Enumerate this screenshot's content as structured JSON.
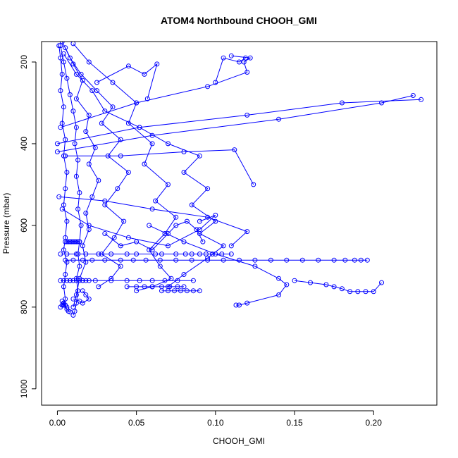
{
  "chart_data": {
    "type": "scatter",
    "title": "ATOM4 Northbound CHOOH_GMI",
    "xlabel": "CHOOH_GMI",
    "ylabel": "Pressure (mbar)",
    "xlim": [
      -0.01,
      0.24
    ],
    "ylim": [
      1040,
      150
    ],
    "y_reversed": true,
    "grid": false,
    "legend": "none",
    "x_ticks": [
      0.0,
      0.05,
      0.1,
      0.15,
      0.2
    ],
    "x_tick_labels": [
      "0.00",
      "0.05",
      "0.10",
      "0.15",
      "0.20"
    ],
    "y_ticks": [
      200,
      400,
      600,
      800,
      1000
    ],
    "y_tick_labels": [
      "200",
      "400",
      "600",
      "800",
      "1000"
    ],
    "marker": "open-circle",
    "color": "#0000ff",
    "series": [
      {
        "x": [
          0.001,
          0.002,
          0.003,
          0.002,
          0.004,
          0.003,
          0.005,
          0.004,
          0.006,
          0.005,
          0.004,
          0.006,
          0.005,
          0.004,
          0.006,
          0.005,
          0.004,
          0.005,
          0.004,
          0.006
        ],
        "y": [
          160,
          190,
          230,
          270,
          310,
          350,
          390,
          430,
          470,
          510,
          550,
          590,
          630,
          660,
          690,
          720,
          750,
          780,
          795,
          800
        ]
      },
      {
        "x": [
          0.002,
          0.004,
          0.006,
          0.008,
          0.01,
          0.012,
          0.011,
          0.013,
          0.012,
          0.014,
          0.013,
          0.015,
          0.014,
          0.013,
          0.014,
          0.012,
          0.013,
          0.012,
          0.011,
          0.01
        ],
        "y": [
          160,
          200,
          240,
          280,
          320,
          360,
          400,
          440,
          480,
          520,
          560,
          600,
          640,
          670,
          700,
          730,
          760,
          790,
          810,
          820
        ]
      },
      {
        "x": [
          0.005,
          0.01,
          0.016,
          0.012,
          0.02,
          0.018,
          0.024,
          0.02,
          0.026,
          0.022,
          0.018,
          0.02,
          0.016,
          0.018,
          0.014,
          0.012,
          0.01
        ],
        "y": [
          165,
          205,
          245,
          290,
          330,
          370,
          410,
          450,
          490,
          530,
          570,
          610,
          650,
          690,
          730,
          770,
          800
        ]
      },
      {
        "x": [
          0.003,
          0.008,
          0.015,
          0.025,
          0.035,
          0.028,
          0.04,
          0.032,
          0.045,
          0.038,
          0.03,
          0.042,
          0.036,
          0.028,
          0.04,
          0.034,
          0.026
        ],
        "y": [
          150,
          190,
          230,
          270,
          310,
          350,
          390,
          430,
          470,
          510,
          550,
          590,
          630,
          670,
          700,
          730,
          750
        ]
      },
      {
        "x": [
          0.01,
          0.02,
          0.035,
          0.05,
          0.045,
          0.06,
          0.055,
          0.07,
          0.062,
          0.075,
          0.068,
          0.058,
          0.065,
          0.072,
          0.06,
          0.05
        ],
        "y": [
          155,
          200,
          250,
          300,
          350,
          400,
          450,
          500,
          540,
          580,
          620,
          660,
          700,
          730,
          750,
          760
        ]
      },
      {
        "x": [
          0.004,
          0.012,
          0.022,
          0.03,
          0.052,
          0.07,
          0.09,
          0.08,
          0.095,
          0.085,
          0.1,
          0.09,
          0.105,
          0.095,
          0.08,
          0.07
        ],
        "y": [
          180,
          230,
          270,
          320,
          360,
          400,
          430,
          470,
          510,
          550,
          590,
          620,
          650,
          680,
          720,
          750
        ]
      },
      {
        "x": [
          0.002,
          0.006,
          0.012,
          0.018,
          0.026,
          0.034,
          0.044,
          0.05,
          0.062,
          0.066,
          0.075,
          0.081,
          0.085,
          0.09,
          0.094,
          0.098,
          0.104,
          0.11
        ],
        "y": [
          670,
          670,
          670,
          670,
          670,
          670,
          670,
          670,
          670,
          670,
          670,
          670,
          670,
          670,
          670,
          670,
          670,
          670
        ]
      },
      {
        "x": [
          0.005,
          0.01,
          0.016,
          0.022,
          0.03,
          0.04,
          0.048,
          0.056,
          0.065,
          0.075,
          0.085,
          0.095,
          0.105,
          0.115,
          0.125,
          0.135,
          0.145,
          0.155,
          0.165,
          0.175,
          0.182,
          0.188,
          0.192,
          0.196
        ],
        "y": [
          685,
          685,
          685,
          685,
          685,
          685,
          685,
          685,
          685,
          685,
          685,
          685,
          685,
          685,
          685,
          685,
          685,
          685,
          685,
          685,
          685,
          685,
          685,
          685
        ]
      },
      {
        "x": [
          0.008,
          0.016,
          0.024,
          0.034,
          0.044,
          0.052,
          0.06,
          0.068,
          0.076,
          0.086
        ],
        "y": [
          735,
          735,
          735,
          735,
          735,
          735,
          735,
          735,
          735,
          735
        ]
      },
      {
        "x": [
          0.044,
          0.05,
          0.055,
          0.06,
          0.066,
          0.071,
          0.076,
          0.08
        ],
        "y": [
          750,
          750,
          750,
          750,
          750,
          750,
          750,
          750
        ]
      },
      {
        "x": [
          0.066,
          0.07,
          0.074,
          0.078,
          0.082,
          0.086,
          0.09
        ],
        "y": [
          760,
          760,
          760,
          760,
          760,
          760,
          760
        ]
      },
      {
        "x": [
          0.15,
          0.16,
          0.17,
          0.175,
          0.18,
          0.185,
          0.19,
          0.195,
          0.2,
          0.205
        ],
        "y": [
          735,
          740,
          745,
          750,
          755,
          762,
          762,
          762,
          762,
          740
        ]
      },
      {
        "x": [
          0.0,
          0.052,
          0.12,
          0.18,
          0.23
        ],
        "y": [
          400,
          360,
          330,
          300,
          292
        ]
      },
      {
        "x": [
          0.0,
          0.06,
          0.14,
          0.205,
          0.225
        ],
        "y": [
          420,
          380,
          340,
          300,
          282
        ]
      },
      {
        "x": [
          0.002,
          0.05,
          0.095,
          0.12,
          0.118,
          0.122,
          0.11
        ],
        "y": [
          360,
          300,
          260,
          225,
          200,
          190,
          185
        ]
      },
      {
        "x": [
          0.025,
          0.045,
          0.055,
          0.063,
          0.057
        ],
        "y": [
          250,
          210,
          230,
          205,
          290
        ]
      },
      {
        "x": [
          0.1,
          0.105,
          0.115,
          0.119
        ],
        "y": [
          250,
          190,
          200,
          190
        ]
      },
      {
        "x": [
          0.005,
          0.04,
          0.08,
          0.112,
          0.124
        ],
        "y": [
          430,
          430,
          420,
          415,
          500
        ]
      },
      {
        "x": [
          0.001,
          0.03,
          0.06,
          0.095,
          0.12,
          0.11
        ],
        "y": [
          530,
          540,
          560,
          580,
          615,
          650
        ]
      },
      {
        "x": [
          0.058,
          0.08,
          0.1,
          0.125,
          0.14,
          0.145,
          0.14,
          0.12,
          0.115,
          0.113
        ],
        "y": [
          600,
          640,
          670,
          700,
          730,
          745,
          770,
          790,
          795,
          795
        ]
      },
      {
        "x": [
          0.003,
          0.02,
          0.045,
          0.07,
          0.09,
          0.1,
          0.09
        ],
        "y": [
          560,
          600,
          630,
          650,
          610,
          575,
          590
        ]
      },
      {
        "x": [
          0.03,
          0.04,
          0.05,
          0.06,
          0.07,
          0.075,
          0.082,
          0.088,
          0.092
        ],
        "y": [
          620,
          650,
          640,
          660,
          620,
          600,
          590,
          610,
          640
        ]
      },
      {
        "x": [
          0.002,
          0.003,
          0.004,
          0.003,
          0.004,
          0.005,
          0.006,
          0.007,
          0.008
        ],
        "y": [
          800,
          795,
          790,
          785,
          790,
          795,
          805,
          810,
          812
        ]
      },
      {
        "x": [
          0.005,
          0.006,
          0.007,
          0.008,
          0.009,
          0.01,
          0.011,
          0.012,
          0.013,
          0.014
        ],
        "y": [
          640,
          640,
          640,
          640,
          640,
          640,
          640,
          640,
          640,
          640
        ]
      },
      {
        "x": [
          0.002,
          0.004,
          0.006,
          0.008,
          0.01,
          0.012,
          0.014,
          0.016,
          0.018,
          0.02
        ],
        "y": [
          735,
          735,
          735,
          735,
          735,
          735,
          735,
          735,
          735,
          735
        ]
      },
      {
        "x": [
          0.01,
          0.014,
          0.016,
          0.02,
          0.018,
          0.016
        ],
        "y": [
          780,
          785,
          790,
          780,
          770,
          760
        ]
      }
    ]
  }
}
